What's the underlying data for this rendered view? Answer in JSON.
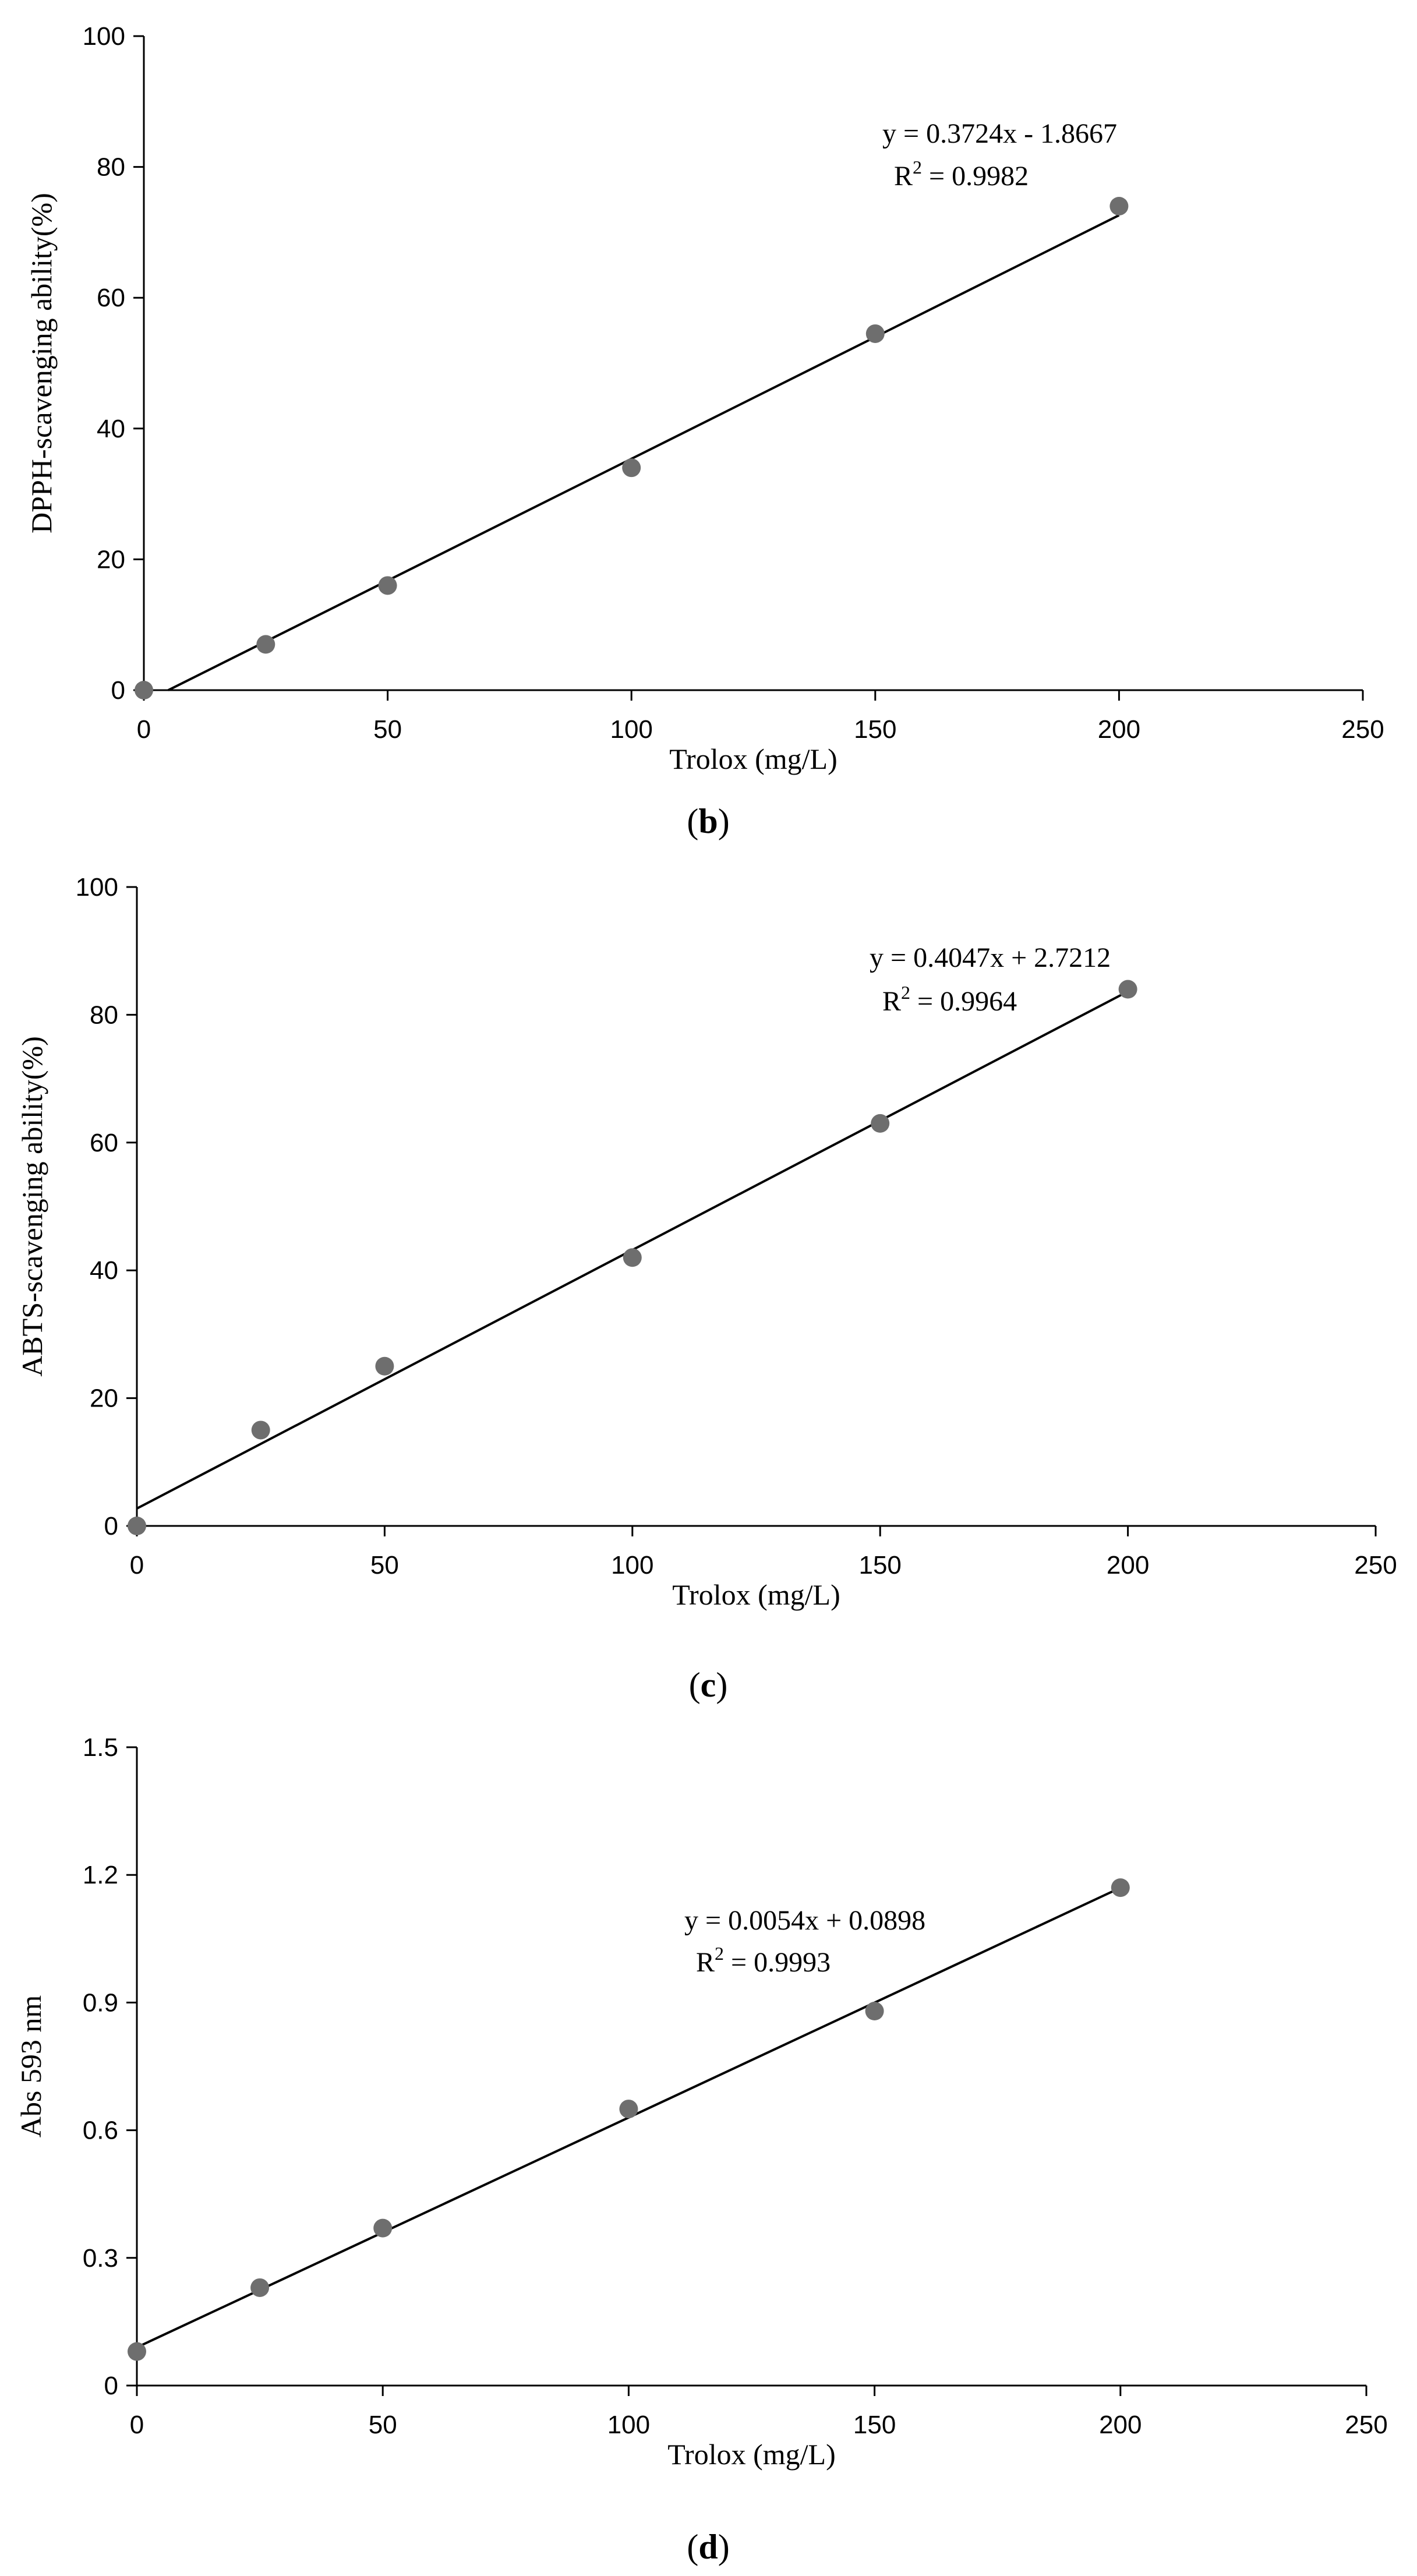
{
  "chart_data": [
    {
      "type": "scatter",
      "panel_label": "b",
      "xlabel": "Trolox (mg/L)",
      "ylabel": "DPPH-scavenging ability(%)",
      "xlim": [
        0,
        250
      ],
      "ylim": [
        0,
        100
      ],
      "xticks": [
        "0",
        "50",
        "100",
        "150",
        "200",
        "250"
      ],
      "yticks": [
        "0",
        "20",
        "40",
        "60",
        "80",
        "100"
      ],
      "grid": false,
      "series": [
        {
          "x": [
            0,
            25,
            50,
            100,
            150,
            200
          ],
          "y": [
            0,
            7,
            16,
            34,
            54.5,
            74
          ]
        }
      ],
      "trendline": {
        "slope": 0.3724,
        "intercept": -1.8667,
        "x_range": [
          5,
          200
        ]
      },
      "equation_text": "y = 0.3724x - 1.8667",
      "r2_label": "R",
      "r2_value": " = 0.9982",
      "point_color": "#6e6e6e",
      "line_color": "#000000"
    },
    {
      "type": "scatter",
      "panel_label": "c",
      "xlabel": "Trolox (mg/L)",
      "ylabel": "ABTS-scavenging ability(%)",
      "xlim": [
        0,
        250
      ],
      "ylim": [
        0,
        100
      ],
      "xticks": [
        "0",
        "50",
        "100",
        "150",
        "200",
        "250"
      ],
      "yticks": [
        "0",
        "20",
        "40",
        "60",
        "80",
        "100"
      ],
      "grid": false,
      "series": [
        {
          "x": [
            0,
            25,
            50,
            100,
            150,
            200
          ],
          "y": [
            0,
            15,
            25,
            42,
            63,
            84
          ]
        }
      ],
      "trendline": {
        "slope": 0.4047,
        "intercept": 2.7212,
        "x_range": [
          0,
          200
        ]
      },
      "equation_text": "y = 0.4047x + 2.7212",
      "r2_label": "R",
      "r2_value": " = 0.9964",
      "point_color": "#6e6e6e",
      "line_color": "#000000"
    },
    {
      "type": "scatter",
      "panel_label": "d",
      "xlabel": "Trolox (mg/L)",
      "ylabel": "Abs 593 nm",
      "xlim": [
        0,
        250
      ],
      "ylim": [
        0,
        1.5
      ],
      "xticks": [
        "0",
        "50",
        "100",
        "150",
        "200",
        "250"
      ],
      "yticks": [
        "0",
        "0.3",
        "0.6",
        "0.9",
        "1.2",
        "1.5"
      ],
      "grid": false,
      "series": [
        {
          "x": [
            0,
            25,
            50,
            100,
            150,
            200
          ],
          "y": [
            0.08,
            0.23,
            0.37,
            0.65,
            0.88,
            1.17
          ]
        }
      ],
      "trendline": {
        "slope": 0.0054,
        "intercept": 0.0898,
        "x_range": [
          0,
          200
        ]
      },
      "equation_text": "y = 0.0054x + 0.0898",
      "r2_label": "R",
      "r2_value": " = 0.9993",
      "point_color": "#6e6e6e",
      "line_color": "#000000"
    }
  ]
}
